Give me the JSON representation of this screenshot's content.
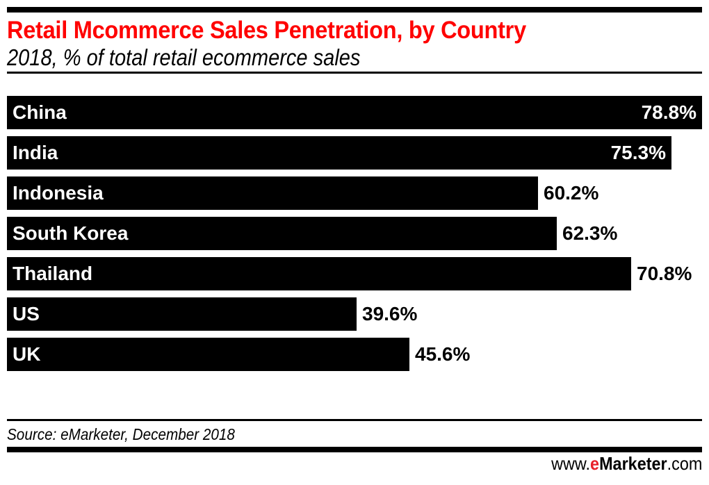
{
  "header": {
    "title": "Retail Mcommerce Sales Penetration, by Country",
    "subtitle": "2018, % of total retail ecommerce sales"
  },
  "footer": {
    "source": "Source: eMarketer, December 2018",
    "brand_prefix": "www.",
    "brand_e": "e",
    "brand_name": "Marketer",
    "brand_suffix": ".com"
  },
  "colors": {
    "title": "#ff0000",
    "bar": "#000000",
    "brand_e": "#e8202a"
  },
  "chart_data": {
    "type": "bar",
    "orientation": "horizontal",
    "title": "Retail Mcommerce Sales Penetration, by Country",
    "subtitle": "2018, % of total retail ecommerce sales",
    "categories": [
      "China",
      "India",
      "Indonesia",
      "South Korea",
      "Thailand",
      "US",
      "UK"
    ],
    "values": [
      78.8,
      75.3,
      60.2,
      62.3,
      70.8,
      39.6,
      45.6
    ],
    "value_labels": [
      "78.8%",
      "75.3%",
      "60.2%",
      "62.3%",
      "70.8%",
      "39.6%",
      "45.6%"
    ],
    "xlabel": "",
    "ylabel": "",
    "unit": "%",
    "grid": false,
    "legend": null,
    "source": "Source: eMarketer, December 2018"
  }
}
